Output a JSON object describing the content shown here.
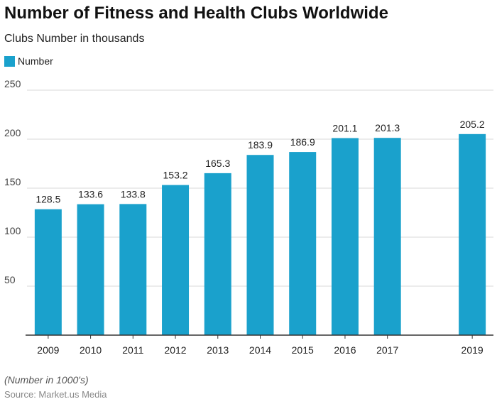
{
  "chart_data": {
    "type": "bar",
    "title": "Number of Fitness and Health Clubs Worldwide",
    "subtitle": "Clubs Number in thousands",
    "x": [
      "2009",
      "2010",
      "2011",
      "2012",
      "2013",
      "2014",
      "2015",
      "2016",
      "2017",
      "2019"
    ],
    "x_numeric": [
      2009,
      2010,
      2011,
      2012,
      2013,
      2014,
      2015,
      2016,
      2017,
      2019
    ],
    "xlim": [
      2008.5,
      2019.5
    ],
    "series": [
      {
        "name": "Number",
        "values": [
          128.5,
          133.6,
          133.8,
          153.2,
          165.3,
          183.9,
          186.9,
          201.1,
          201.3,
          205.2
        ],
        "color": "#1aa1cc"
      }
    ],
    "data_labels": [
      "128.5",
      "133.6",
      "133.8",
      "153.2",
      "165.3",
      "183.9",
      "186.9",
      "201.1",
      "201.3",
      "205.2"
    ],
    "ylim": [
      0,
      250
    ],
    "yticks": [
      50,
      100,
      150,
      200,
      250
    ],
    "grid": true,
    "legend": "top-left",
    "xlabel": "",
    "ylabel": "",
    "note": "(Number in 1000's)",
    "source": "Source: Market.us Media"
  }
}
